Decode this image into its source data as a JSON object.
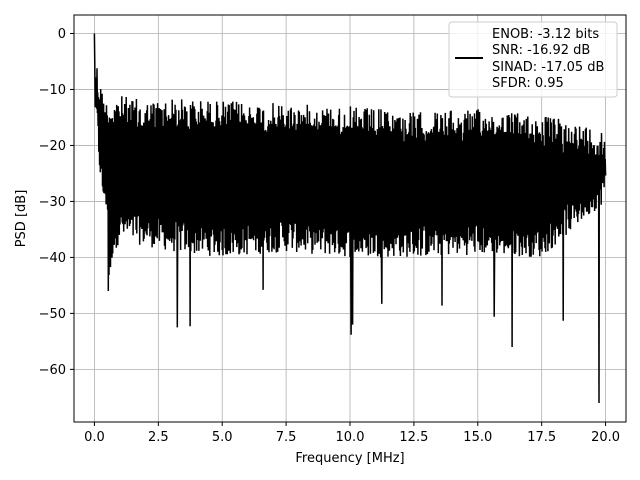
{
  "chart_data": {
    "type": "line",
    "title": "",
    "xlabel": "Frequency [MHz]",
    "ylabel": "PSD [dB]",
    "xlim": [
      -0.8,
      20.8
    ],
    "ylim": [
      -69.4,
      3.3
    ],
    "xticks": [
      0.0,
      2.5,
      5.0,
      7.5,
      10.0,
      12.5,
      15.0,
      17.5,
      20.0
    ],
    "xtick_labels": [
      "0.0",
      "2.5",
      "5.0",
      "7.5",
      "10.0",
      "12.5",
      "15.0",
      "17.5",
      "20.0"
    ],
    "yticks": [
      0,
      -10,
      -20,
      -30,
      -40,
      -50,
      -60
    ],
    "ytick_labels": [
      "0",
      "−10",
      "−20",
      "−30",
      "−40",
      "−50",
      "−60"
    ],
    "grid": true,
    "legend_position": "top-right",
    "legend_lines": [
      "ENOB: -3.12 bits",
      "SNR: -16.92 dB",
      "SINAD: -17.05 dB",
      "SFDR: 0.95"
    ],
    "line_color": "#000000",
    "series": [
      {
        "x_start": 0.0,
        "x_end": 20.0,
        "envelope_points": [
          [
            0.0,
            0.0,
            -15.0
          ],
          [
            0.05,
            -4.0,
            -15.0
          ],
          [
            0.15,
            -6.0,
            -22.0
          ],
          [
            0.3,
            -10.0,
            -30.0
          ],
          [
            0.5,
            -12.0,
            -32.0
          ],
          [
            0.58,
            -12.0,
            -46.0
          ],
          [
            0.7,
            -11.0,
            -40.0
          ],
          [
            1.0,
            -11.0,
            -37.0
          ],
          [
            2.0,
            -12.0,
            -38.0
          ],
          [
            3.0,
            -11.5,
            -39.0
          ],
          [
            5.0,
            -12.0,
            -40.0
          ],
          [
            7.5,
            -12.5,
            -39.0
          ],
          [
            10.0,
            -13.0,
            -40.0
          ],
          [
            12.5,
            -14.0,
            -40.0
          ],
          [
            15.0,
            -13.5,
            -39.5
          ],
          [
            17.5,
            -14.5,
            -40.0
          ],
          [
            20.0,
            -17.0,
            -30.0
          ]
        ],
        "dips": [
          [
            0.55,
            -46.0
          ],
          [
            3.25,
            -52.5
          ],
          [
            3.75,
            -52.3
          ],
          [
            6.6,
            -45.8
          ],
          [
            10.05,
            -53.8
          ],
          [
            10.1,
            -52.0
          ],
          [
            11.25,
            -48.3
          ],
          [
            13.6,
            -48.6
          ],
          [
            15.65,
            -50.6
          ],
          [
            16.35,
            -56.0
          ],
          [
            18.35,
            -51.3
          ],
          [
            19.75,
            -66.0
          ]
        ]
      }
    ]
  }
}
